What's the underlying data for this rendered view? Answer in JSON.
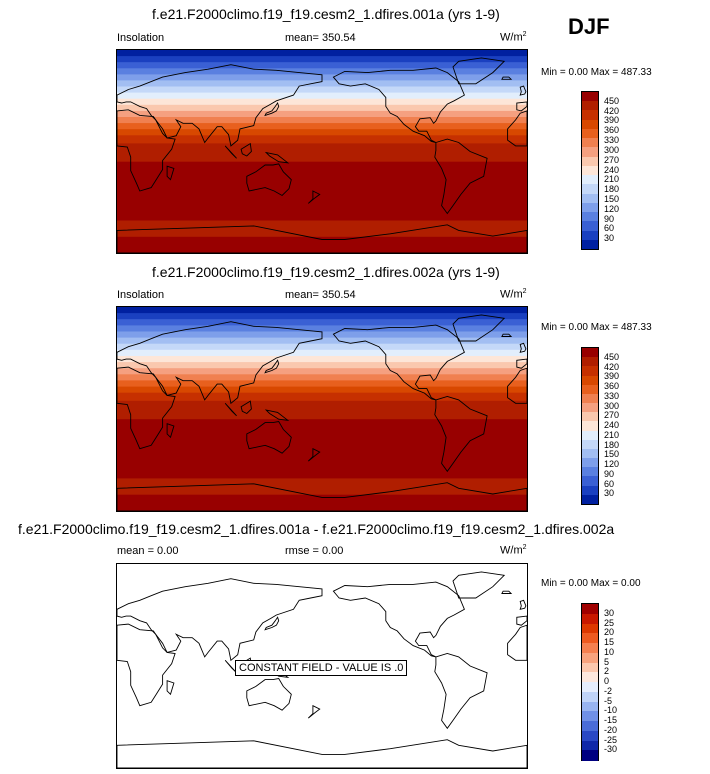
{
  "season": "DJF",
  "panels": [
    {
      "title": "f.e21.F2000climo.f19_f19.cesm2_1.dfires.001a (yrs 1-9)",
      "left_label": "Insolation",
      "center_label": "mean= 350.54",
      "units": "W/m",
      "units_sup": "2",
      "minmax": "Min =   0.00 Max = 487.33",
      "colorbar_levels": [
        "450",
        "420",
        "390",
        "360",
        "330",
        "300",
        "270",
        "240",
        "210",
        "180",
        "150",
        "120",
        "90",
        "60",
        "30"
      ]
    },
    {
      "title": "f.e21.F2000climo.f19_f19.cesm2_1.dfires.002a (yrs 1-9)",
      "left_label": "Insolation",
      "center_label": "mean= 350.54",
      "units": "W/m",
      "units_sup": "2",
      "minmax": "Min =   0.00 Max = 487.33",
      "colorbar_levels": [
        "450",
        "420",
        "390",
        "360",
        "330",
        "300",
        "270",
        "240",
        "210",
        "180",
        "150",
        "120",
        "90",
        "60",
        "30"
      ]
    },
    {
      "title": "f.e21.F2000climo.f19_f19.cesm2_1.dfires.001a - f.e21.F2000climo.f19_f19.cesm2_1.dfires.002a",
      "left_label": "mean =   0.00",
      "center_label": "rmse =   0.00",
      "units": "W/m",
      "units_sup": "2",
      "minmax": "Min =   0.00 Max =   0.00",
      "constant_field_label": "CONSTANT FIELD - VALUE IS .0",
      "colorbar_levels": [
        "30",
        "25",
        "20",
        "15",
        "10",
        "5",
        "2",
        "0",
        "-2",
        "-5",
        "-10",
        "-15",
        "-20",
        "-25",
        "-30"
      ]
    }
  ],
  "colors": {
    "insolation_scale": [
      "#980000",
      "#b01e00",
      "#c63000",
      "#d84800",
      "#e8601e",
      "#f08050",
      "#f5a080",
      "#fac8ae",
      "#fde6d8",
      "#e2eefc",
      "#c4d8f8",
      "#a2bef2",
      "#7e9fea",
      "#5a80e0",
      "#3a60d4",
      "#1a40c0",
      "#0020a0"
    ],
    "diff_scale": [
      "#a00000",
      "#c81800",
      "#dd3800",
      "#ee5a20",
      "#f58050",
      "#f8a37e",
      "#fcc8ae",
      "#fde8de",
      "#e6eefd",
      "#c0d4f8",
      "#98b4f0",
      "#7090e6",
      "#4a6cd8",
      "#2a48c4",
      "#1028a8",
      "#000080"
    ]
  }
}
